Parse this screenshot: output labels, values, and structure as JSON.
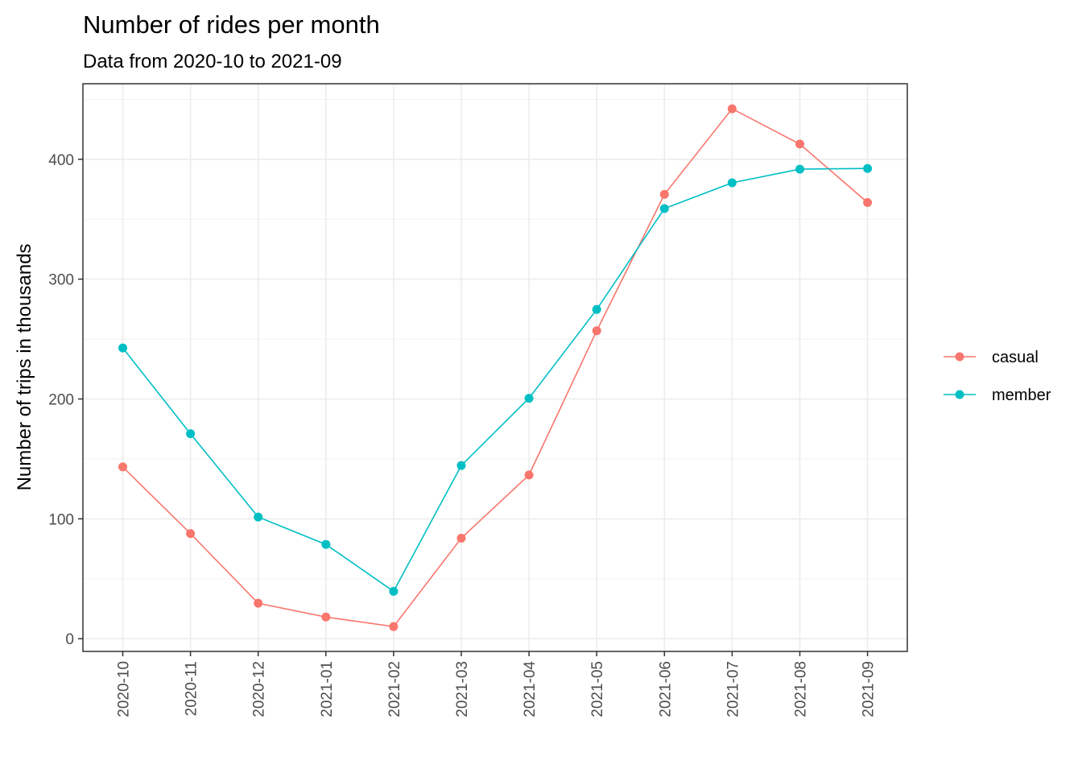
{
  "chart_data": {
    "type": "line",
    "title": "Number of rides per month",
    "subtitle": "Data from 2020-10 to 2021-09",
    "xlabel": "",
    "ylabel": "Number of trips in thousands",
    "categories": [
      "2020-10",
      "2020-11",
      "2020-12",
      "2021-01",
      "2021-02",
      "2021-03",
      "2021-04",
      "2021-05",
      "2021-06",
      "2021-07",
      "2021-08",
      "2021-09"
    ],
    "series": [
      {
        "name": "casual",
        "color": "#F8766D",
        "values": [
          143.3,
          87.7,
          29.6,
          18.1,
          10.1,
          83.9,
          136.6,
          256.9,
          370.7,
          442.1,
          412.7,
          363.9
        ]
      },
      {
        "name": "member",
        "color": "#00BFC4",
        "values": [
          242.6,
          171.0,
          101.5,
          78.7,
          39.5,
          144.5,
          200.6,
          274.7,
          358.9,
          380.4,
          391.7,
          392.3
        ]
      }
    ],
    "yticks": [
      0,
      100,
      200,
      300,
      400
    ],
    "ylim": [
      -10.6,
      463.0
    ],
    "grid": true,
    "legend_position": "right"
  }
}
